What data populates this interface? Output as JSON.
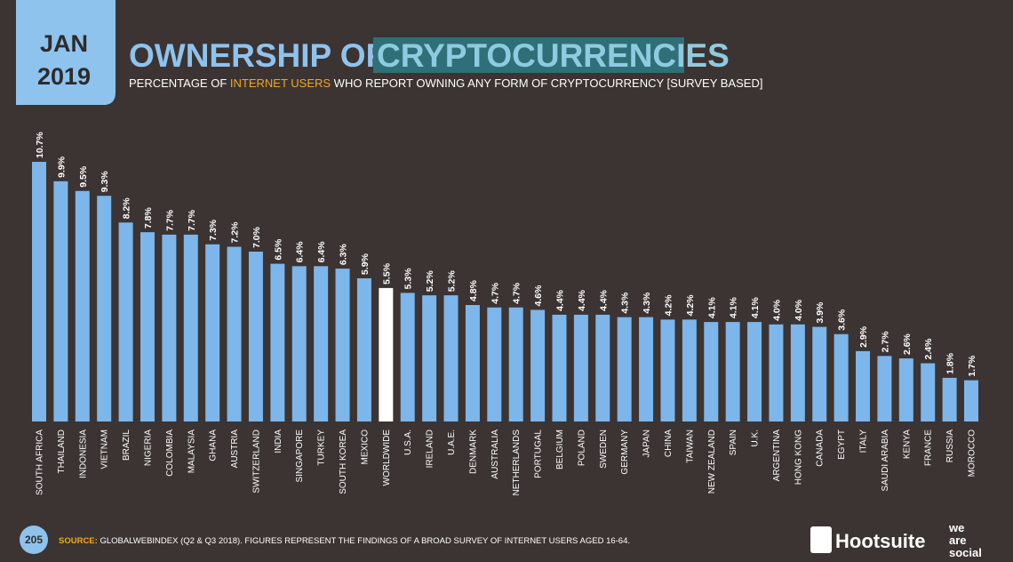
{
  "header": {
    "month": "JAN",
    "year": "2019",
    "title_part1": "OWNERSHIP OF",
    "title_part2": "CRYPTOCURRENCIES",
    "subtitle_part1": "PERCENTAGE OF ",
    "subtitle_part2": "INTERNET USERS",
    "subtitle_part3": " WHO REPORT OWNING ANY FORM OF CRYPTOCURRENCY [SURVEY BASED]"
  },
  "chart_data": {
    "type": "bar",
    "categories": [
      "SOUTH AFRICA",
      "THAILAND",
      "INDONESIA",
      "VIETNAM",
      "BRAZIL",
      "NIGERIA",
      "COLOMBIA",
      "MALAYSIA",
      "GHANA",
      "AUSTRIA",
      "SWITZERLAND",
      "INDIA",
      "SINGAPORE",
      "TURKEY",
      "SOUTH KOREA",
      "MEXICO",
      "WORLDWIDE",
      "U.S.A.",
      "IRELAND",
      "U.A.E.",
      "DENMARK",
      "AUSTRALIA",
      "NETHERLANDS",
      "PORTUGAL",
      "BELGIUM",
      "POLAND",
      "SWEDEN",
      "GERMANY",
      "JAPAN",
      "CHINA",
      "TAIWAN",
      "NEW ZEALAND",
      "SPAIN",
      "U.K.",
      "ARGENTINA",
      "HONG KONG",
      "CANADA",
      "EGYPT",
      "ITALY",
      "SAUDI ARABIA",
      "KENYA",
      "FRANCE",
      "RUSSIA",
      "MOROCCO"
    ],
    "values": [
      10.7,
      9.9,
      9.5,
      9.3,
      8.2,
      7.8,
      7.7,
      7.7,
      7.3,
      7.2,
      7.0,
      6.5,
      6.4,
      6.4,
      6.3,
      5.9,
      5.5,
      5.3,
      5.2,
      5.2,
      4.8,
      4.7,
      4.7,
      4.6,
      4.4,
      4.4,
      4.4,
      4.3,
      4.3,
      4.2,
      4.2,
      4.1,
      4.1,
      4.1,
      4.0,
      4.0,
      3.9,
      3.6,
      2.9,
      2.7,
      2.6,
      2.4,
      1.8,
      1.7
    ],
    "value_labels": [
      "10.7%",
      "9.9%",
      "9.5%",
      "9.3%",
      "8.2%",
      "7.8%",
      "7.7%",
      "7.7%",
      "7.3%",
      "7.2%",
      "7.0%",
      "6.5%",
      "6.4%",
      "6.4%",
      "6.3%",
      "5.9%",
      "5.5%",
      "5.3%",
      "5.2%",
      "5.2%",
      "4.8%",
      "4.7%",
      "4.7%",
      "4.6%",
      "4.4%",
      "4.4%",
      "4.4%",
      "4.3%",
      "4.3%",
      "4.2%",
      "4.2%",
      "4.1%",
      "4.1%",
      "4.1%",
      "4.0%",
      "4.0%",
      "3.9%",
      "3.6%",
      "2.9%",
      "2.7%",
      "2.6%",
      "2.4%",
      "1.8%",
      "1.7%"
    ],
    "colors": [
      "#7cb6ea",
      "#7cb6ea",
      "#7cb6ea",
      "#7cb6ea",
      "#7cb6ea",
      "#7cb6ea",
      "#7cb6ea",
      "#7cb6ea",
      "#7cb6ea",
      "#7cb6ea",
      "#7cb6ea",
      "#7cb6ea",
      "#7cb6ea",
      "#7cb6ea",
      "#7cb6ea",
      "#7cb6ea",
      "#ffffff",
      "#7cb6ea",
      "#7cb6ea",
      "#7cb6ea",
      "#7cb6ea",
      "#7cb6ea",
      "#7cb6ea",
      "#7cb6ea",
      "#7cb6ea",
      "#7cb6ea",
      "#7cb6ea",
      "#7cb6ea",
      "#7cb6ea",
      "#7cb6ea",
      "#7cb6ea",
      "#7cb6ea",
      "#7cb6ea",
      "#7cb6ea",
      "#7cb6ea",
      "#7cb6ea",
      "#7cb6ea",
      "#7cb6ea",
      "#7cb6ea",
      "#7cb6ea",
      "#7cb6ea",
      "#7cb6ea",
      "#7cb6ea",
      "#7cb6ea"
    ]
  },
  "footer": {
    "page_number": "205",
    "source_label": "SOURCE:",
    "source_text": " GLOBALWEBINDEX (Q2 & Q3 2018). FIGURES REPRESENT THE FINDINGS OF A BROAD SURVEY OF INTERNET USERS AGED 16-64.",
    "brand1": "Hootsuite",
    "brand2_line1": "we",
    "brand2_line2": "are",
    "brand2_line3": "social"
  }
}
